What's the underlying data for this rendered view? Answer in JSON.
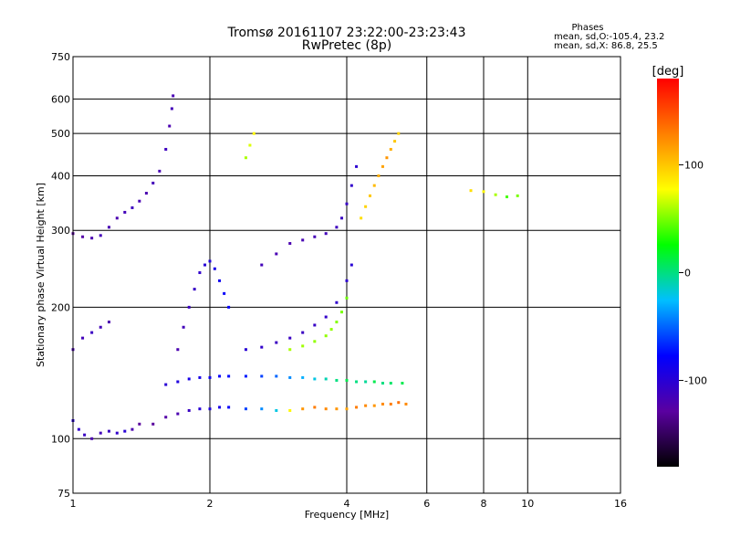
{
  "chart_data": {
    "type": "scatter",
    "title": "Tromsø 20161107 23:22:00-23:23:43",
    "subtitle": "RwPretec (8p)",
    "xlabel": "Frequency [MHz]",
    "ylabel": "Stationary phase Virtual Height [km]",
    "x_scale": "log",
    "y_scale": "log",
    "xlim": [
      1,
      16
    ],
    "ylim": [
      75,
      750
    ],
    "x_ticks": [
      "1",
      "2",
      "4",
      "6",
      "8",
      "10",
      "16"
    ],
    "y_ticks": [
      "75",
      "100",
      "200",
      "300",
      "400",
      "500",
      "600",
      "750"
    ],
    "grid": true,
    "stats": {
      "heading": "Phases",
      "line_o": "mean, sd,O:-105.4, 23.2",
      "line_x": "mean, sd,X:  86.8, 25.5"
    },
    "colorbar": {
      "label": "[deg]",
      "range": [
        -180,
        180
      ],
      "ticks": [
        "100",
        "0",
        "-100"
      ],
      "colors": [
        "#000000",
        "#5a00a0",
        "#0000ff",
        "#00bfff",
        "#00ff00",
        "#ffff00",
        "#ff8000",
        "#ff0000"
      ]
    },
    "series": [
      {
        "x": [
          1.0,
          1.05,
          1.1,
          1.15,
          1.2,
          1.25,
          1.3,
          1.35,
          1.4,
          1.45,
          1.5,
          1.55,
          1.6,
          1.63,
          1.65,
          1.66
        ],
        "y": [
          295,
          290,
          288,
          292,
          305,
          320,
          330,
          338,
          350,
          365,
          385,
          410,
          460,
          520,
          570,
          610
        ],
        "phase": [
          -130,
          -125,
          -120,
          -115,
          -118,
          -120,
          -115,
          -112,
          -118,
          -120,
          -115,
          -118,
          -112,
          -120,
          -115,
          -118
        ]
      },
      {
        "x": [
          1.0,
          1.03,
          1.06,
          1.1,
          1.15,
          1.2,
          1.25,
          1.3,
          1.35,
          1.4,
          1.5,
          1.6,
          1.7,
          1.8,
          1.9,
          2.0,
          2.1,
          2.2,
          2.4,
          2.6,
          2.8,
          3.0,
          3.2,
          3.4,
          3.6,
          3.8,
          4.0,
          4.2,
          4.4,
          4.6,
          4.8,
          5.0,
          5.2,
          5.4
        ],
        "y": [
          110,
          105,
          102,
          100,
          103,
          104,
          103,
          104,
          105,
          108,
          108,
          112,
          114,
          116,
          117,
          117,
          118,
          118,
          117,
          117,
          116,
          116,
          117,
          118,
          117,
          117,
          117,
          118,
          119,
          119,
          120,
          120,
          121,
          120
        ],
        "phase": [
          -100,
          -105,
          -110,
          -120,
          -115,
          -110,
          -105,
          -100,
          -120,
          -130,
          -130,
          -125,
          -120,
          -110,
          -100,
          -95,
          -90,
          -80,
          -60,
          -40,
          -20,
          80,
          120,
          130,
          125,
          120,
          115,
          130,
          125,
          120,
          125,
          130,
          135,
          125
        ]
      },
      {
        "x": [
          1.6,
          1.7,
          1.8,
          1.9,
          2.0,
          2.1,
          2.2,
          2.4,
          2.6,
          2.8,
          3.0,
          3.2,
          3.4,
          3.6,
          3.8,
          4.0,
          4.2,
          4.4,
          4.6,
          4.8,
          5.0,
          5.3
        ],
        "y": [
          133,
          135,
          137,
          138,
          138,
          139,
          139,
          139,
          139,
          139,
          138,
          138,
          137,
          137,
          136,
          136,
          135,
          135,
          135,
          134,
          134,
          134
        ],
        "phase": [
          -100,
          -95,
          -90,
          -90,
          -85,
          -80,
          -75,
          -70,
          -60,
          -50,
          -40,
          -30,
          -20,
          -10,
          0,
          10,
          0,
          -5,
          10,
          0,
          5,
          10
        ]
      },
      {
        "x": [
          1.7,
          1.75,
          1.8,
          1.85,
          1.9,
          1.95,
          2.0,
          2.05,
          2.1,
          2.15,
          2.2
        ],
        "y": [
          160,
          180,
          200,
          220,
          240,
          250,
          255,
          245,
          230,
          215,
          200
        ],
        "phase": [
          -120,
          -115,
          -110,
          -108,
          -105,
          -100,
          -95,
          -90,
          -85,
          -80,
          -80
        ]
      },
      {
        "x": [
          2.4,
          2.6,
          2.8,
          3.0,
          3.2,
          3.4,
          3.6,
          3.8,
          4.0,
          4.1
        ],
        "y": [
          160,
          162,
          166,
          170,
          175,
          182,
          190,
          205,
          230,
          250
        ],
        "phase": [
          -100,
          -105,
          -110,
          -110,
          -110,
          -108,
          -106,
          -104,
          -102,
          -100
        ]
      },
      {
        "x": [
          3.0,
          3.2,
          3.4,
          3.6,
          3.7,
          3.8,
          3.9,
          4.0
        ],
        "y": [
          160,
          163,
          167,
          172,
          178,
          185,
          195,
          210
        ],
        "phase": [
          60,
          58,
          55,
          55,
          55,
          52,
          50,
          48
        ]
      },
      {
        "x": [
          2.6,
          2.8,
          3.0,
          3.2,
          3.4,
          3.6,
          3.8,
          3.9,
          4.0,
          4.1,
          4.2
        ],
        "y": [
          250,
          265,
          280,
          285,
          290,
          295,
          305,
          320,
          345,
          380,
          420
        ],
        "phase": [
          -115,
          -118,
          -120,
          -118,
          -116,
          -115,
          -112,
          -110,
          -108,
          -105,
          -102
        ]
      },
      {
        "x": [
          4.3,
          4.4,
          4.5,
          4.6,
          4.7,
          4.8,
          4.9,
          5.0,
          5.1,
          5.2
        ],
        "y": [
          320,
          340,
          360,
          380,
          400,
          420,
          440,
          460,
          480,
          500
        ],
        "phase": [
          90,
          95,
          100,
          105,
          110,
          115,
          120,
          110,
          100,
          95
        ]
      },
      {
        "x": [
          1.0,
          1.05,
          1.1,
          1.15,
          1.2
        ],
        "y": [
          160,
          170,
          175,
          180,
          185
        ],
        "phase": [
          -120,
          -115,
          -110,
          -115,
          -120
        ]
      },
      {
        "x": [
          7.5,
          8.0,
          8.5,
          9.0,
          9.5
        ],
        "y": [
          370,
          368,
          362,
          358,
          360
        ],
        "phase": [
          90,
          80,
          60,
          40,
          50
        ]
      },
      {
        "x": [
          2.4,
          2.45,
          2.5
        ],
        "y": [
          440,
          470,
          500
        ],
        "phase": [
          60,
          70,
          80
        ]
      }
    ]
  }
}
